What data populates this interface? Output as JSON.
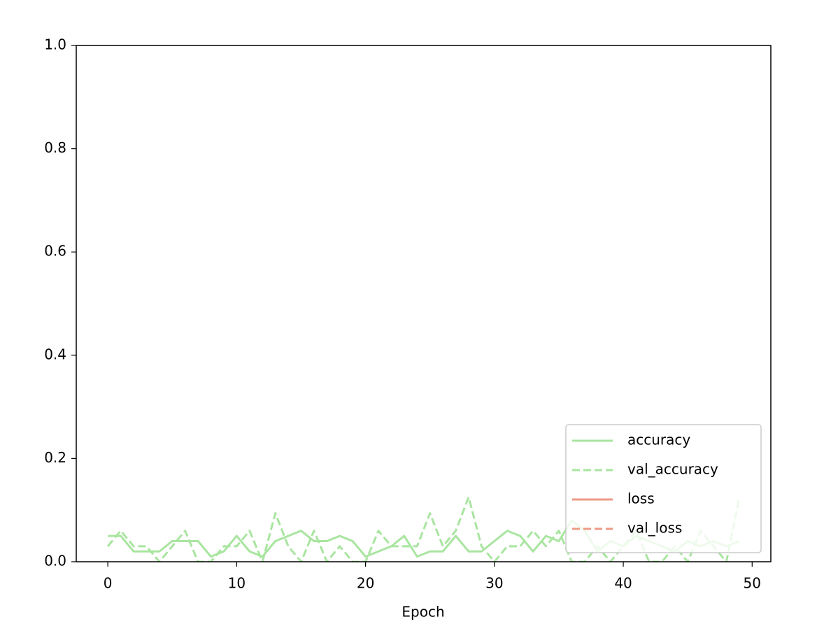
{
  "chart_data": {
    "type": "line",
    "x_label": "Epoch",
    "x": [
      0,
      1,
      2,
      3,
      4,
      5,
      6,
      7,
      8,
      9,
      10,
      11,
      12,
      13,
      14,
      15,
      16,
      17,
      18,
      19,
      20,
      21,
      22,
      23,
      24,
      25,
      26,
      27,
      28,
      29,
      30,
      31,
      32,
      33,
      34,
      35,
      36,
      37,
      38,
      39,
      40,
      41,
      42,
      43,
      44,
      45,
      46,
      47,
      48,
      49
    ],
    "series": [
      {
        "name": "accuracy",
        "color": "#a9e5a0",
        "dash": false,
        "values": [
          0.05,
          0.05,
          0.02,
          0.02,
          0.02,
          0.04,
          0.04,
          0.04,
          0.01,
          0.02,
          0.05,
          0.02,
          0.01,
          0.04,
          0.05,
          0.06,
          0.04,
          0.04,
          0.05,
          0.04,
          0.01,
          0.02,
          0.03,
          0.05,
          0.01,
          0.02,
          0.02,
          0.05,
          0.02,
          0.02,
          0.04,
          0.06,
          0.05,
          0.02,
          0.05,
          0.04,
          0.08,
          0.06,
          0.02,
          0.04,
          0.03,
          0.05,
          0.04,
          0.03,
          0.02,
          0.04,
          0.03,
          0.04,
          0.03,
          0.04
        ]
      },
      {
        "name": "val_accuracy",
        "color": "#a9e5a0",
        "dash": true,
        "values": [
          0.03,
          0.06,
          0.03,
          0.03,
          0.0,
          0.03,
          0.06,
          0.0,
          0.0,
          0.03,
          0.03,
          0.06,
          0.0,
          0.094,
          0.03,
          0.0,
          0.06,
          0.0,
          0.03,
          0.0,
          0.0,
          0.06,
          0.03,
          0.03,
          0.03,
          0.094,
          0.03,
          0.06,
          0.125,
          0.03,
          0.0,
          0.03,
          0.03,
          0.06,
          0.03,
          0.06,
          0.0,
          0.0,
          0.03,
          0.0,
          0.03,
          0.06,
          0.0,
          0.0,
          0.03,
          0.0,
          0.06,
          0.03,
          0.0,
          0.125
        ]
      },
      {
        "name": "loss",
        "color": "#ee9a87",
        "dash": false,
        "values": [
          null,
          null,
          null,
          null,
          null,
          null,
          null,
          null,
          null,
          null,
          null,
          null,
          null,
          null,
          null,
          null,
          null,
          null,
          null,
          null,
          null,
          null,
          null,
          null,
          null,
          null,
          null,
          null,
          null,
          null,
          null,
          null,
          null,
          null,
          null,
          null,
          null,
          null,
          null,
          null,
          null,
          null,
          null,
          null,
          null,
          null,
          null,
          null,
          null,
          null
        ]
      },
      {
        "name": "val_loss",
        "color": "#ee9a87",
        "dash": true,
        "values": [
          null,
          null,
          null,
          null,
          null,
          null,
          null,
          null,
          null,
          null,
          null,
          null,
          null,
          null,
          null,
          null,
          null,
          null,
          null,
          null,
          null,
          null,
          null,
          null,
          null,
          null,
          null,
          null,
          null,
          null,
          null,
          null,
          null,
          null,
          null,
          null,
          null,
          null,
          null,
          null,
          null,
          null,
          null,
          null,
          null,
          null,
          null,
          null,
          null,
          null
        ]
      }
    ],
    "xlim": [
      -2.45,
      51.45
    ],
    "ylim": [
      0,
      1
    ],
    "xticks": [
      0,
      10,
      20,
      30,
      40,
      50
    ],
    "yticks": [
      {
        "value": 0,
        "label": "0.0"
      },
      0.2,
      0.4,
      0.6,
      0.8,
      {
        "value": 1,
        "label": "1.0"
      }
    ],
    "legend": "lower right",
    "grid": false
  }
}
